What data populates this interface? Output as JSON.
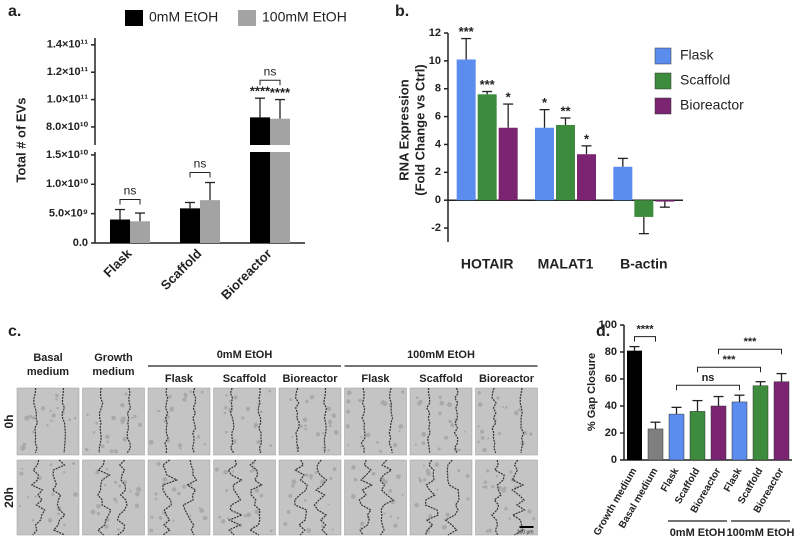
{
  "chart_data": [
    {
      "type": "bar",
      "title": "a.",
      "y_label": "Total # of EVs",
      "categories": [
        "Flask",
        "Scaffold",
        "Bioreactor"
      ],
      "series": [
        {
          "name": "0mM EtOH",
          "color": "#000000",
          "values": [
            4000000000,
            5900000000,
            87000000000
          ],
          "errors": [
            1700000000,
            1000000000,
            14000000000
          ]
        },
        {
          "name": "100mM EtOH",
          "color": "#a3a3a3",
          "values": [
            3700000000,
            7300000000,
            86000000000
          ],
          "errors": [
            1400000000,
            3000000000,
            14000000000
          ]
        }
      ],
      "ylim": [
        0,
        145000000000
      ],
      "axis_break": [
        15500000000,
        66800000000
      ],
      "yticks": [
        {
          "value": 0,
          "label": "0.0"
        },
        {
          "value": 5000000000,
          "label": "5.0×10⁹"
        },
        {
          "value": 10000000000,
          "label": "1.0×10¹⁰"
        },
        {
          "value": 15000000000,
          "label": "1.5×10¹⁰"
        },
        {
          "value": 80000000000,
          "label": "8.0×10¹⁰"
        },
        {
          "value": 100000000000,
          "label": "1.0×10¹¹"
        },
        {
          "value": 120000000000,
          "label": "1.2×10¹¹"
        },
        {
          "value": 140000000000,
          "label": "1.4×10¹¹"
        }
      ],
      "legend": "top",
      "annotations": [
        {
          "text": "****",
          "category": "Bioreactor",
          "series": "0mM EtOH"
        },
        {
          "text": "****",
          "category": "Bioreactor",
          "series": "100mM EtOH"
        },
        {
          "text": "ns",
          "category": "Flask"
        },
        {
          "text": "ns",
          "category": "Scaffold"
        },
        {
          "text": "ns",
          "category": "Bioreactor"
        }
      ]
    },
    {
      "type": "bar",
      "title": "b.",
      "y_label": [
        "RNA Expression",
        "(Fold Change vs Ctrl)"
      ],
      "categories": [
        "HOTAIR",
        "MALAT1",
        "B-actin"
      ],
      "series": [
        {
          "name": "Flask",
          "color": "#5b8def",
          "values": [
            10.1,
            5.2,
            2.4
          ],
          "errors": [
            1.5,
            1.3,
            0.6
          ]
        },
        {
          "name": "Scaffold",
          "color": "#3d8b3d",
          "values": [
            7.6,
            5.4,
            -1.2
          ],
          "errors": [
            0.2,
            0.5,
            1.2
          ]
        },
        {
          "name": "Bioreactor",
          "color": "#7b2472",
          "values": [
            5.2,
            3.3,
            -0.1
          ],
          "errors": [
            1.7,
            0.6,
            0.4
          ]
        }
      ],
      "ylim": [
        -3,
        12
      ],
      "yticks": [
        -2,
        0,
        2,
        4,
        6,
        8,
        10,
        12
      ],
      "legend": "upper right",
      "annotations": [
        {
          "text": "***",
          "category": "HOTAIR",
          "series": "Flask"
        },
        {
          "text": "***",
          "category": "HOTAIR",
          "series": "Scaffold"
        },
        {
          "text": "*",
          "category": "HOTAIR",
          "series": "Bioreactor"
        },
        {
          "text": "*",
          "category": "MALAT1",
          "series": "Flask"
        },
        {
          "text": "**",
          "category": "MALAT1",
          "series": "Scaffold"
        },
        {
          "text": "*",
          "category": "MALAT1",
          "series": "Bioreactor"
        }
      ]
    },
    {
      "type": "bar",
      "title": "d.",
      "y_label": "% Gap Closure",
      "categories": [
        "Growth medium",
        "Basal medium",
        "Flask",
        "Scaffold",
        "Bioreactor",
        "Flask",
        "Scaffold",
        "Bioreactor"
      ],
      "values": [
        81,
        23,
        34,
        36,
        40,
        43,
        55,
        58
      ],
      "errors": [
        3,
        5,
        5,
        8,
        7,
        5,
        3,
        6
      ],
      "colors": [
        "#000000",
        "#7f7f7f",
        "#5b8def",
        "#3d8b3d",
        "#7b2472",
        "#5b8def",
        "#3d8b3d",
        "#7b2472"
      ],
      "ylim": [
        0,
        100
      ],
      "yticks": [
        0,
        20,
        40,
        60,
        80,
        100
      ],
      "brackets": [
        {
          "text": "****",
          "from": 0,
          "to": 1
        },
        {
          "text": "ns",
          "from": 2,
          "to": 5
        },
        {
          "text": "***",
          "from": 3,
          "to": 6
        },
        {
          "text": "***",
          "from": 4,
          "to": 7
        }
      ],
      "groups": [
        {
          "label": "0mM EtOH",
          "from": 2,
          "to": 4
        },
        {
          "label": "100mM EtOH",
          "from": 5,
          "to": 7
        }
      ]
    }
  ],
  "panel_c": {
    "title": "c.",
    "columns": [
      "Basal medium",
      "Growth medium",
      "Flask",
      "Scaffold",
      "Bioreactor",
      "Flask",
      "Scaffold",
      "Bioreactor"
    ],
    "groups": [
      {
        "label": "0mM EtOH",
        "from": 2,
        "to": 4
      },
      {
        "label": "100mM EtOH",
        "from": 5,
        "to": 7
      }
    ],
    "rows": [
      "0h",
      "20h"
    ],
    "scale_bar": "100 µm"
  }
}
